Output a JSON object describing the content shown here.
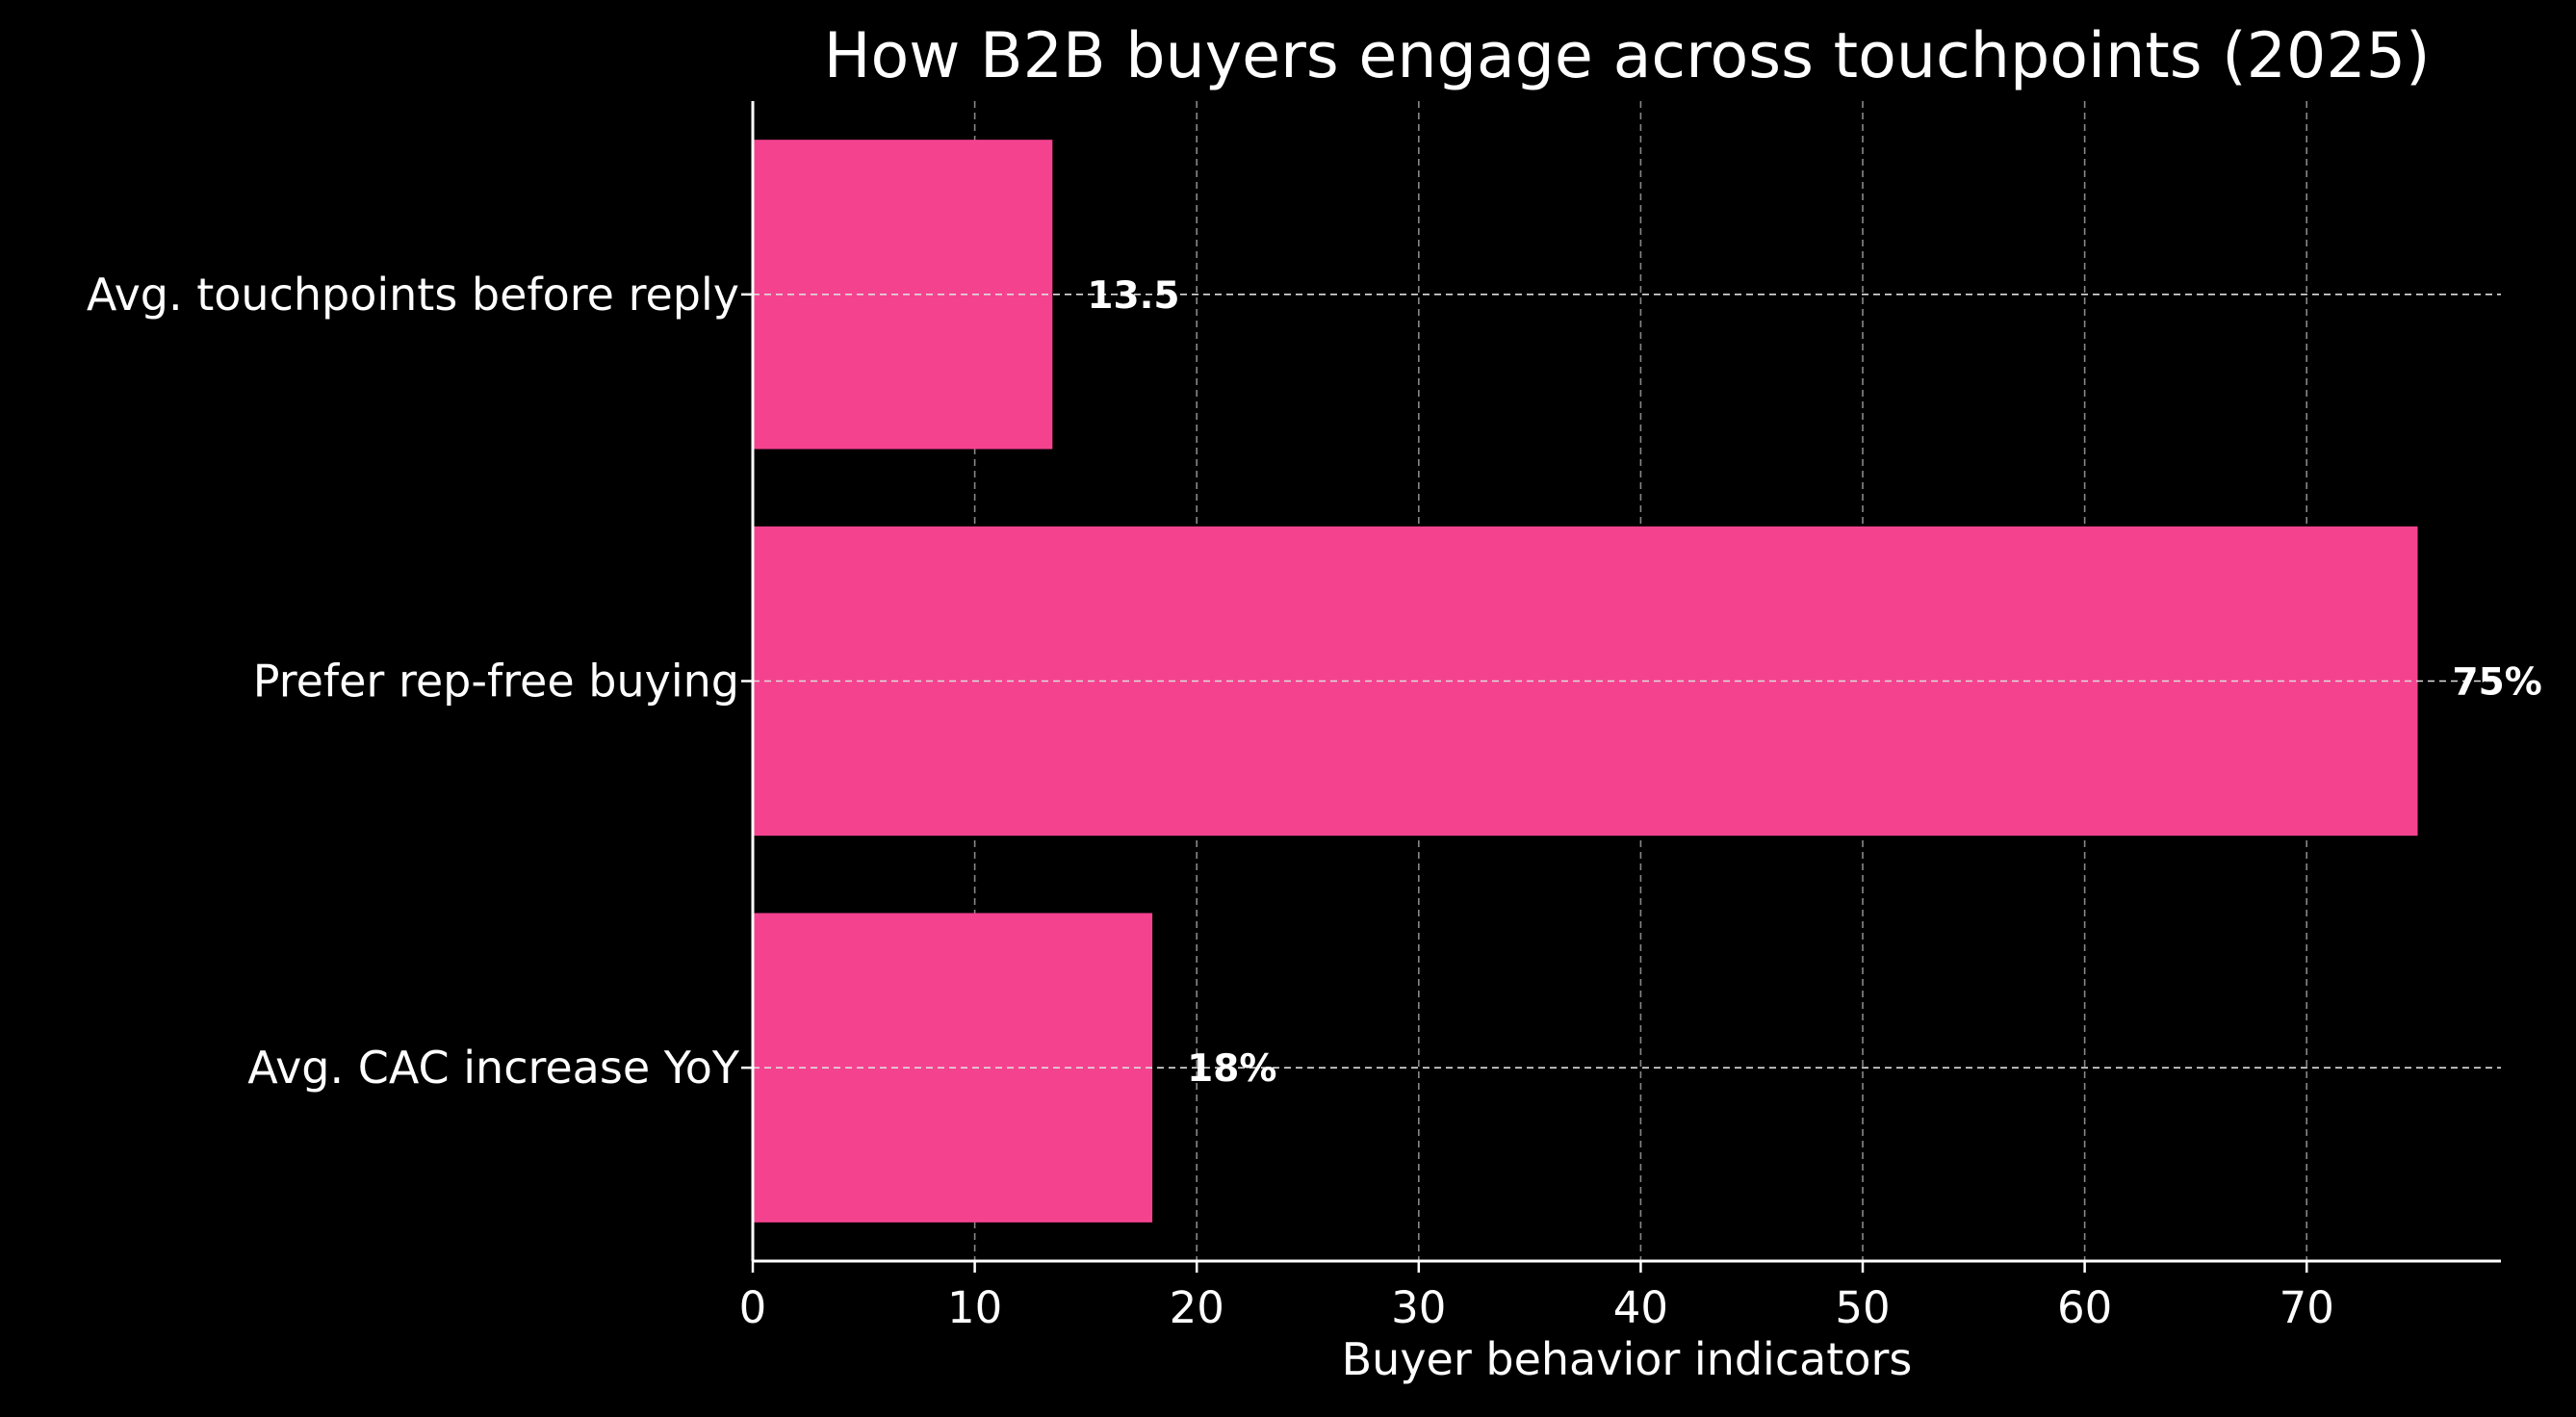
{
  "chart_data": {
    "type": "bar",
    "orientation": "horizontal",
    "title": "How B2B buyers engage across touchpoints (2025)",
    "xlabel": "Buyer behavior indicators",
    "ylabel": "",
    "categories": [
      "Avg. touchpoints before reply",
      "Prefer rep-free buying",
      "Avg. CAC increase YoY"
    ],
    "values": [
      13.5,
      75,
      18
    ],
    "data_labels": [
      "13.5",
      "75%",
      "18%"
    ],
    "xlim": [
      0,
      78.75
    ],
    "xticks": [
      0,
      10,
      20,
      30,
      40,
      50,
      60,
      70
    ],
    "grid": true,
    "colors": {
      "background": "#000000",
      "bar": "#f5428f",
      "text": "#ffffff",
      "axis": "#ffffff",
      "grid": "#888888"
    }
  }
}
